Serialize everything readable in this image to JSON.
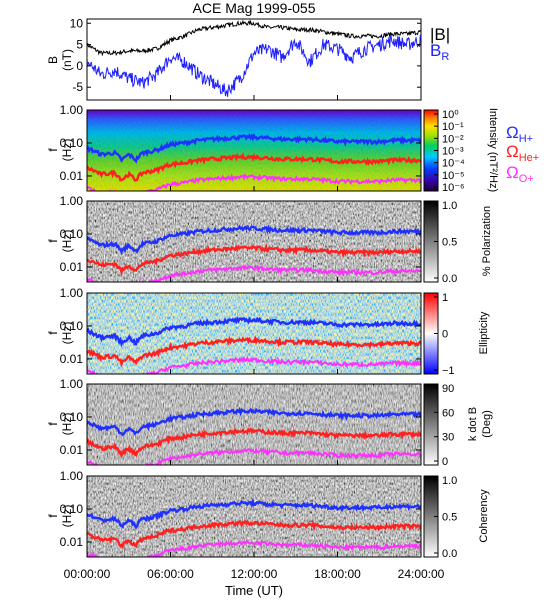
{
  "title": "ACE Mag 1999-055",
  "colors": {
    "hplus": "#2030ff",
    "heplus": "#ff2020",
    "oplus": "#ff30ff",
    "br": "#2020ff",
    "btot": "#000000"
  },
  "legend": {
    "btot_label": "|B|",
    "br_label_main": "B",
    "br_label_sub": "R",
    "omega": "Ω",
    "h_sub": "H+",
    "he_sub": "He+",
    "o_sub": "O+"
  },
  "xaxis": {
    "label": "Time (UT)",
    "ticks": [
      "00:00:00",
      "06:00:00",
      "12:00:00",
      "18:00:00",
      "24:00:00"
    ]
  },
  "chart_data": [
    {
      "type": "line",
      "ylabel_main": "B",
      "ylabel_unit": "(nT)",
      "yticks": [
        "10",
        "5",
        "0",
        "-5"
      ],
      "ylim": [
        -8,
        11
      ],
      "xlim": [
        0,
        24
      ],
      "series": [
        {
          "name": "|B|",
          "x": [
            0,
            1,
            2,
            3,
            4,
            5,
            6,
            7,
            8,
            9,
            10,
            11,
            12,
            13,
            14,
            15,
            16,
            17,
            18,
            19,
            20,
            21,
            22,
            23,
            24
          ],
          "values": [
            5,
            3,
            3,
            3.5,
            3.5,
            4,
            6,
            7,
            8.5,
            9,
            9.5,
            10,
            10,
            9,
            9,
            8.5,
            8.5,
            8,
            7.5,
            7,
            7,
            7,
            7.5,
            7.5,
            8
          ]
        },
        {
          "name": "B_R",
          "x": [
            0,
            1,
            2,
            3,
            4,
            5,
            6,
            7,
            8,
            9,
            10,
            11,
            12,
            13,
            14,
            15,
            16,
            17,
            18,
            19,
            20,
            21,
            22,
            23,
            24
          ],
          "values": [
            1,
            -2,
            -1,
            -3,
            -4,
            -2,
            2,
            1,
            -2,
            -4,
            -6,
            -3,
            3,
            4,
            2,
            6,
            1,
            5,
            4,
            2,
            4,
            5,
            6,
            5,
            6
          ]
        }
      ]
    },
    {
      "type": "heatmap",
      "ylabel_main": "f",
      "ylabel_unit": "(Hz)",
      "yticks": [
        "1.00",
        "0.10",
        "0.01"
      ],
      "colorbar_label": "Intensity (nT²/Hz)",
      "colorbar_ticks": [
        "10⁰",
        "10⁻¹",
        "10⁻²",
        "10⁻³",
        "10⁻⁴",
        "10⁻⁵",
        "10⁻⁶"
      ],
      "colormap": "rainbow"
    },
    {
      "type": "heatmap",
      "ylabel_main": "f",
      "ylabel_unit": "(Hz)",
      "yticks": [
        "1.00",
        "0.10",
        "0.01"
      ],
      "colorbar_label": "% Polarization",
      "colorbar_ticks": [
        "1.0",
        "0.5",
        "0.0"
      ],
      "colormap": "gray"
    },
    {
      "type": "heatmap",
      "ylabel_main": "f",
      "ylabel_unit": "(Hz)",
      "yticks": [
        "1.00",
        "0.10",
        "0.01"
      ],
      "colorbar_label": "Ellipticity",
      "colorbar_ticks": [
        "1",
        "0",
        "−1"
      ],
      "colormap": "blue-white-red"
    },
    {
      "type": "heatmap",
      "ylabel_main": "f",
      "ylabel_unit": "(Hz)",
      "yticks": [
        "1.00",
        "0.10",
        "0.01"
      ],
      "colorbar_label": "k dot B (Deg)",
      "colorbar_label_l1": "k dot B",
      "colorbar_label_l2": "(Deg)",
      "colorbar_ticks": [
        "90",
        "60",
        "30",
        "0"
      ],
      "colormap": "gray"
    },
    {
      "type": "heatmap",
      "ylabel_main": "f",
      "ylabel_unit": "(Hz)",
      "yticks": [
        "1.00",
        "0.10",
        "0.01"
      ],
      "colorbar_label": "Coherency",
      "colorbar_ticks": [
        "1.0",
        "0.5",
        "0.0"
      ],
      "colormap": "gray"
    }
  ],
  "gyro_curves": {
    "x": [
      0,
      1,
      2,
      2.5,
      3,
      3.5,
      4,
      5,
      6,
      7,
      8,
      9,
      10,
      11,
      12,
      13,
      14,
      15,
      16,
      17,
      18,
      19,
      20,
      21,
      22,
      23,
      24
    ],
    "hplus_hz": [
      0.07,
      0.045,
      0.05,
      0.03,
      0.045,
      0.03,
      0.05,
      0.06,
      0.09,
      0.1,
      0.12,
      0.13,
      0.14,
      0.15,
      0.15,
      0.14,
      0.13,
      0.13,
      0.13,
      0.12,
      0.11,
      0.11,
      0.11,
      0.11,
      0.12,
      0.12,
      0.12
    ]
  }
}
